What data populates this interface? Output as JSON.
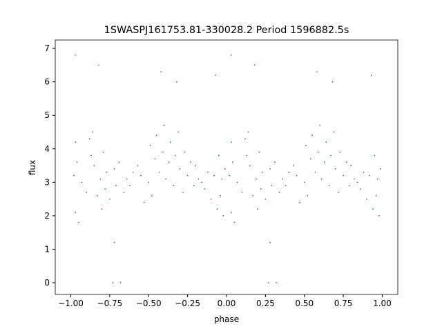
{
  "chart_data": {
    "type": "scatter",
    "title": "1SWASPJ161753.81-330028.2 Period 1596882.5s",
    "xlabel": "phase",
    "ylabel": "flux",
    "color": "#1f77b4",
    "xlim": [
      -1.1,
      1.1
    ],
    "ylim": [
      -0.35,
      7.25
    ],
    "xticks": [
      {
        "value": -1,
        "label": "−1.00"
      },
      {
        "value": -0.75,
        "label": "−0.75"
      },
      {
        "value": -0.5,
        "label": "−0.50"
      },
      {
        "value": -0.25,
        "label": "−0.25"
      },
      {
        "value": 0,
        "label": "0.00"
      },
      {
        "value": 0.25,
        "label": "0.25"
      },
      {
        "value": 0.5,
        "label": "0.50"
      },
      {
        "value": 0.75,
        "label": "0.75"
      },
      {
        "value": 1,
        "label": "1.00"
      }
    ],
    "yticks": [
      0,
      1,
      2,
      3,
      4,
      5,
      6,
      7
    ],
    "x": [
      -0.98,
      -0.97,
      -0.97,
      -0.96,
      -0.95,
      -0.93,
      -0.9,
      -0.88,
      -0.87,
      -0.86,
      -0.85,
      -0.83,
      -0.81,
      -0.8,
      -0.79,
      -0.78,
      -0.77,
      -0.75,
      -0.73,
      -0.72,
      -0.71,
      -0.69,
      -0.68,
      -0.66,
      -0.64,
      -0.62,
      -0.6,
      -0.57,
      -0.55,
      -0.53,
      -0.5,
      -0.49,
      -0.48,
      -0.46,
      -0.45,
      -0.43,
      -0.41,
      -0.4,
      -0.39,
      -0.37,
      -0.36,
      -0.34,
      -0.33,
      -0.31,
      -0.3,
      -0.28,
      -0.27,
      -0.25,
      -0.23,
      -0.21,
      -0.2,
      -0.18,
      -0.16,
      -0.14,
      -0.12,
      -0.1,
      -0.08,
      -0.06,
      -0.05,
      -0.04,
      -0.03,
      -0.02,
      -0.01,
      -0.97,
      -0.82,
      -0.72,
      -0.42,
      -0.32,
      -0.07,
      0.02,
      0.03,
      0.03,
      0.04,
      0.05,
      0.07,
      0.1,
      0.12,
      0.13,
      0.14,
      0.15,
      0.17,
      0.19,
      0.2,
      0.21,
      0.22,
      0.23,
      0.25,
      0.27,
      0.28,
      0.29,
      0.31,
      0.32,
      0.34,
      0.36,
      0.38,
      0.4,
      0.43,
      0.45,
      0.47,
      0.5,
      0.51,
      0.52,
      0.54,
      0.55,
      0.57,
      0.59,
      0.6,
      0.61,
      0.63,
      0.64,
      0.66,
      0.67,
      0.69,
      0.7,
      0.72,
      0.73,
      0.75,
      0.77,
      0.79,
      0.8,
      0.82,
      0.84,
      0.86,
      0.88,
      0.9,
      0.92,
      0.94,
      0.95,
      0.96,
      0.97,
      0.98,
      0.99,
      0.03,
      0.18,
      0.28,
      0.58,
      0.68,
      0.93
    ],
    "y": [
      3.2,
      2.1,
      4.2,
      3.6,
      1.8,
      3.0,
      2.7,
      4.3,
      3.8,
      4.5,
      3.5,
      2.6,
      3.1,
      2.2,
      3.9,
      2.8,
      3.3,
      2.5,
      0.0,
      3.4,
      2.9,
      3.6,
      0.0,
      2.7,
      3.1,
      2.9,
      3.3,
      3.5,
      3.2,
      2.4,
      3.0,
      4.1,
      2.6,
      3.7,
      4.4,
      3.3,
      3.9,
      4.7,
      3.1,
      3.6,
      4.2,
      2.9,
      3.8,
      4.5,
      3.4,
      2.7,
      3.9,
      3.2,
      3.6,
      2.9,
      3.5,
      3.1,
      3.0,
      2.8,
      3.3,
      2.5,
      3.2,
      2.2,
      3.8,
      2.6,
      3.1,
      2.0,
      3.4,
      6.8,
      6.5,
      1.2,
      6.3,
      6.0,
      6.2,
      3.2,
      2.1,
      4.2,
      3.6,
      1.8,
      3.0,
      2.7,
      4.3,
      3.8,
      4.5,
      3.5,
      2.6,
      3.1,
      2.2,
      3.9,
      2.8,
      3.3,
      2.5,
      0.0,
      3.4,
      2.9,
      3.6,
      0.0,
      2.7,
      3.1,
      2.9,
      3.3,
      3.5,
      3.2,
      2.4,
      3.0,
      4.1,
      2.6,
      3.7,
      4.4,
      3.3,
      3.9,
      4.7,
      3.1,
      3.6,
      4.2,
      2.9,
      3.8,
      4.5,
      3.4,
      2.7,
      3.9,
      3.2,
      3.6,
      2.9,
      3.5,
      3.1,
      3.0,
      2.8,
      3.3,
      2.5,
      3.2,
      2.2,
      3.8,
      2.6,
      3.1,
      2.0,
      3.4,
      6.8,
      6.5,
      1.2,
      6.3,
      6.0,
      6.2
    ]
  }
}
